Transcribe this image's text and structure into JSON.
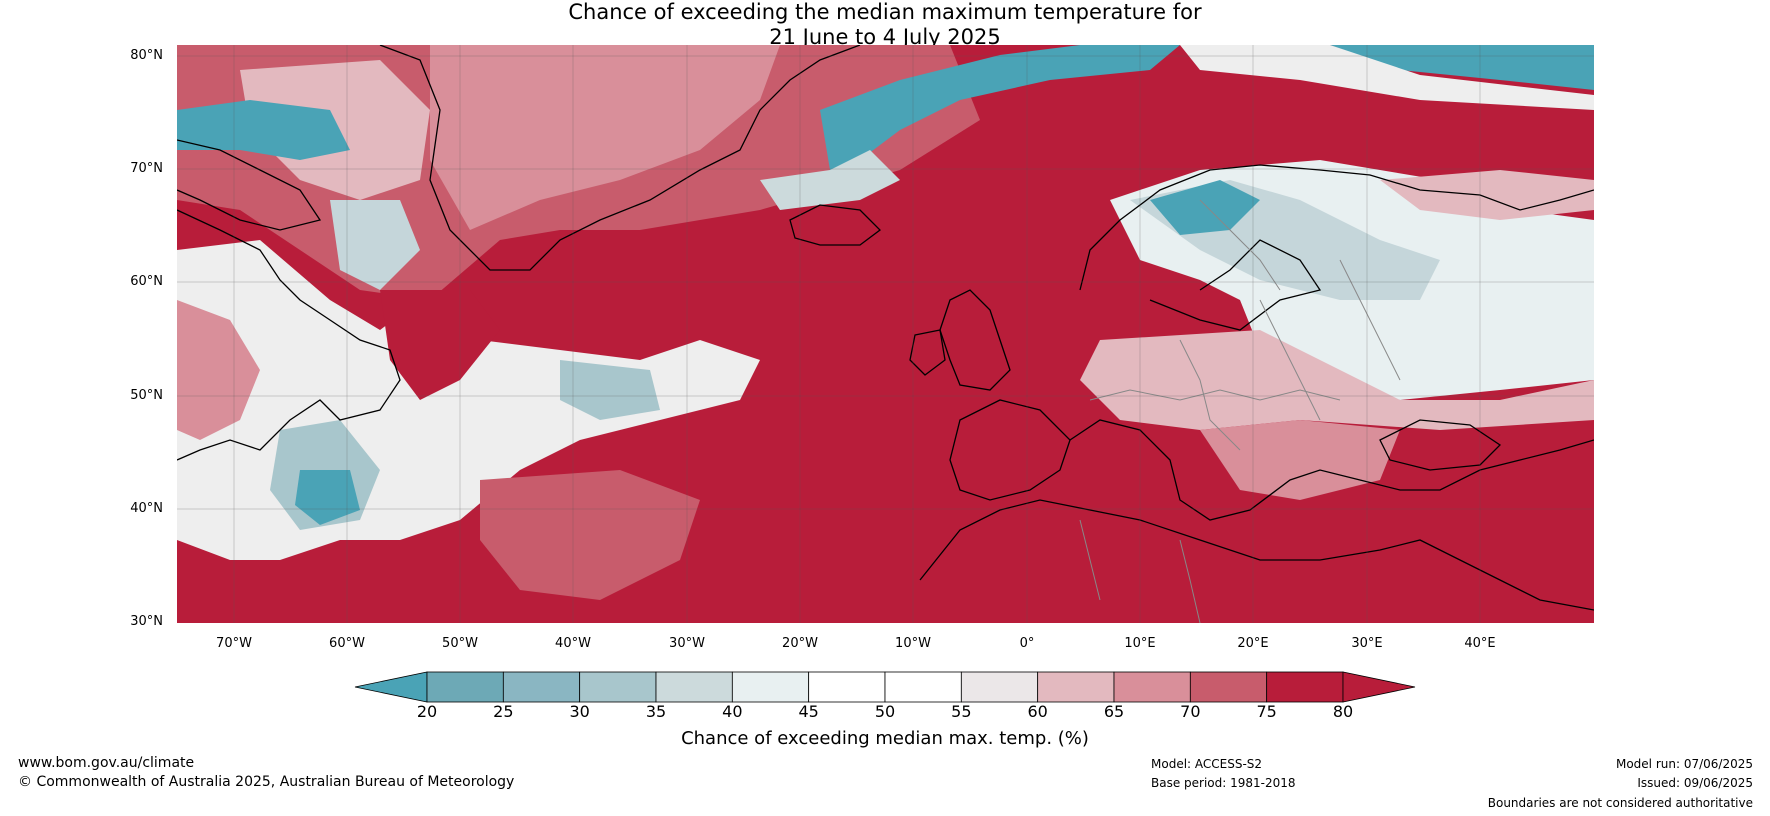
{
  "title": {
    "line1": "Chance of exceeding the median maximum temperature for",
    "line2": "21 June to 4 July 2025"
  },
  "map": {
    "lat_labels": [
      "80°N",
      "70°N",
      "60°N",
      "50°N",
      "40°N",
      "30°N"
    ],
    "lon_labels": [
      "70°W",
      "60°W",
      "50°W",
      "40°W",
      "30°W",
      "20°W",
      "10°W",
      "0°",
      "10°E",
      "20°E",
      "30°E",
      "40°E"
    ],
    "colors": {
      "ocean_hot": "#b81d3a",
      "warm": "#c85c6c",
      "mild": "#d98f9a",
      "neutral": "#eeeeee",
      "cool": "#c5d6da",
      "cold": "#4aa3b6",
      "coast": "#000000",
      "border": "#888888"
    }
  },
  "colorbar": {
    "ticks": [
      "20",
      "25",
      "30",
      "35",
      "40",
      "45",
      "50",
      "55",
      "60",
      "65",
      "70",
      "75",
      "80"
    ],
    "colors": [
      "#4aa3b6",
      "#6da9b6",
      "#8ab6c2",
      "#a8c6cc",
      "#ccdadc",
      "#e8f0f1",
      "#ffffff",
      "#ffffff",
      "#ebe7e8",
      "#e3b9bf",
      "#d98f9a",
      "#c85c6c",
      "#b81d3a"
    ],
    "label": "Chance of exceeding median max. temp. (%)"
  },
  "footer": {
    "url": "www.bom.gov.au/climate",
    "copyright": "© Commonwealth of Australia 2025, Australian Bureau of Meteorology",
    "model": "Model: ACCESS-S2",
    "base_period": "Base period: 1981-2018",
    "model_run": "Model run: 07/06/2025",
    "issued": "Issued: 09/06/2025",
    "disclaimer": "Boundaries are not considered authoritative"
  }
}
